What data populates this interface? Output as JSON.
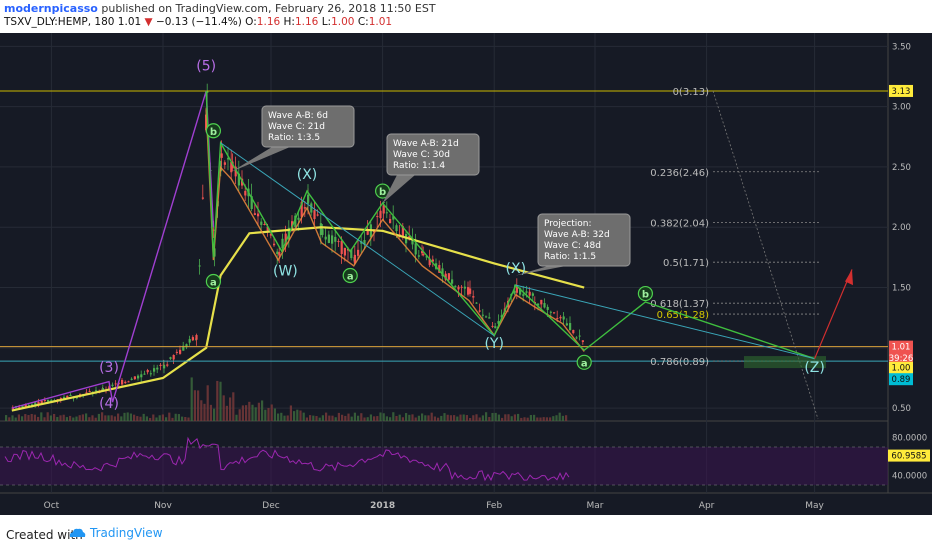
{
  "header": {
    "author": "modernpicasso",
    "published": "published on TradingView.com, February 26, 2018 11:50 EST",
    "symbol": "TSXV_DLY:HEMP, 180",
    "last": "1.01",
    "change": "−0.13 (−11.4%)",
    "o_label": "O:",
    "o": "1.16",
    "h_label": "H:",
    "h": "1.16",
    "l_label": "L:",
    "l": "1.00",
    "c_label": "C:",
    "c": "1.01"
  },
  "footer": {
    "created_with": "Created with",
    "brand": "TradingView"
  },
  "colors": {
    "background": "#161a25",
    "up": "#4caf50",
    "down": "#ef5350",
    "ma_yellow": "#e6e04a",
    "wave_label": "#8fe3e3",
    "purple": "#a03fd1",
    "green_wave": "#3fbf3f",
    "fib_yellow": "#d4c600",
    "rsi_purple": "#9c27b0"
  },
  "chart_data": {
    "type": "candlestick",
    "symbol": "TSXV_DLY:HEMP",
    "interval": "180",
    "x_ticks": [
      "Oct",
      "Nov",
      "Dec",
      "2018",
      "Feb",
      "Mar",
      "Apr",
      "May"
    ],
    "y_ticks": [
      "3.50",
      "3.00",
      "2.50",
      "2.00",
      "1.50",
      "1.00",
      "0.50"
    ],
    "y_range": [
      0.4,
      3.55
    ],
    "price_path": [
      {
        "t": "Sep 20",
        "p": 0.5
      },
      {
        "t": "Oct 15",
        "p": 0.65
      },
      {
        "t": "Nov 1",
        "p": 0.85
      },
      {
        "t": "Nov 10",
        "p": 1.1
      },
      {
        "t": "Nov 13",
        "p": 3.1
      },
      {
        "t": "Nov 15",
        "p": 1.8
      },
      {
        "t": "Nov 17",
        "p": 2.6
      },
      {
        "t": "Nov 20",
        "p": 2.5
      },
      {
        "t": "Dec 3",
        "p": 1.8
      },
      {
        "t": "Dec 11",
        "p": 2.25
      },
      {
        "t": "Dec 15",
        "p": 1.95
      },
      {
        "t": "Dec 24",
        "p": 1.75
      },
      {
        "t": "Jan 1",
        "p": 2.15
      },
      {
        "t": "Jan 12",
        "p": 1.75
      },
      {
        "t": "Jan 25",
        "p": 1.45
      },
      {
        "t": "Feb 1",
        "p": 1.15
      },
      {
        "t": "Feb 7",
        "p": 1.5
      },
      {
        "t": "Feb 12",
        "p": 1.4
      },
      {
        "t": "Feb 20",
        "p": 1.25
      },
      {
        "t": "Feb 26",
        "p": 1.01
      }
    ],
    "moving_average": [
      {
        "t": "Sep 20",
        "p": 0.48
      },
      {
        "t": "Nov 1",
        "p": 0.75
      },
      {
        "t": "Nov 13",
        "p": 1.0
      },
      {
        "t": "Nov 17",
        "p": 1.6
      },
      {
        "t": "Nov 25",
        "p": 1.95
      },
      {
        "t": "Dec 15",
        "p": 2.0
      },
      {
        "t": "Jan 1",
        "p": 1.97
      },
      {
        "t": "Feb 1",
        "p": 1.7
      },
      {
        "t": "Feb 26",
        "p": 1.5
      }
    ],
    "price_labels": [
      {
        "label": "3.13",
        "value": 3.13,
        "bg": "#ffeb3b"
      },
      {
        "label": "1.01",
        "value": 1.01,
        "bg": "#ef5350"
      },
      {
        "label": "39:26",
        "value": 0.915,
        "bg": "#ef5350"
      },
      {
        "label": "1.00",
        "value": 0.835,
        "bg": "#ffeb3b"
      },
      {
        "label": "0.89",
        "value": 0.74,
        "bg": "#00bcd4"
      }
    ],
    "fibonacci": [
      {
        "label": "0(3.13)",
        "value": 3.13
      },
      {
        "label": "0.236(2.46)",
        "value": 2.46
      },
      {
        "label": "0.382(2.04)",
        "value": 2.04
      },
      {
        "label": "0.5(1.71)",
        "value": 1.71
      },
      {
        "label": "0.618(1.37)",
        "value": 1.37
      },
      {
        "label": "0.65(1.28)",
        "value": 1.28,
        "highlight": true
      },
      {
        "label": "0.786(0.89)",
        "value": 0.89
      }
    ],
    "wave_labels": [
      {
        "text": "(3)",
        "t": "Oct 17",
        "p": 0.8,
        "style": "purple"
      },
      {
        "text": "(4)",
        "t": "Oct 17",
        "p": 0.5,
        "style": "purple"
      },
      {
        "text": "(5)",
        "t": "Nov 13",
        "p": 3.3,
        "style": "purple"
      },
      {
        "text": "b",
        "t": "Nov 15",
        "p": 2.8,
        "style": "green"
      },
      {
        "text": "a",
        "t": "Nov 15",
        "p": 1.55,
        "style": "green"
      },
      {
        "text": "(X)",
        "t": "Dec 11",
        "p": 2.4,
        "style": "cyan"
      },
      {
        "text": "(W)",
        "t": "Dec 5",
        "p": 1.6,
        "style": "cyan"
      },
      {
        "text": "a",
        "t": "Dec 23",
        "p": 1.6,
        "style": "green"
      },
      {
        "text": "b",
        "t": "Jan 1",
        "p": 2.3,
        "style": "green"
      },
      {
        "text": "(X)",
        "t": "Feb 7",
        "p": 1.62,
        "style": "cyan"
      },
      {
        "text": "(Y)",
        "t": "Feb 1",
        "p": 1.0,
        "style": "cyan"
      },
      {
        "text": "a",
        "t": "Feb 26",
        "p": 0.88,
        "style": "green"
      },
      {
        "text": "b",
        "t": "Mar 15",
        "p": 1.45,
        "style": "green"
      },
      {
        "text": "(Z)",
        "t": "May 1",
        "p": 0.8,
        "style": "cyan"
      }
    ],
    "annotations": [
      {
        "lines": [
          "Wave A-B: 6d",
          "Wave C: 21d",
          "Ratio: 1:3.5"
        ]
      },
      {
        "lines": [
          "Wave A-B: 21d",
          "Wave C: 30d",
          "Ratio: 1:1.4"
        ]
      },
      {
        "lines": [
          "Projection:",
          "Wave A-B: 32d",
          "Wave C: 48d",
          "Ratio: 1:1.5"
        ]
      }
    ],
    "rsi": {
      "y_ticks": [
        "80.0000",
        "40.0000"
      ],
      "current": "60.9585",
      "band": [
        30,
        70
      ]
    }
  }
}
